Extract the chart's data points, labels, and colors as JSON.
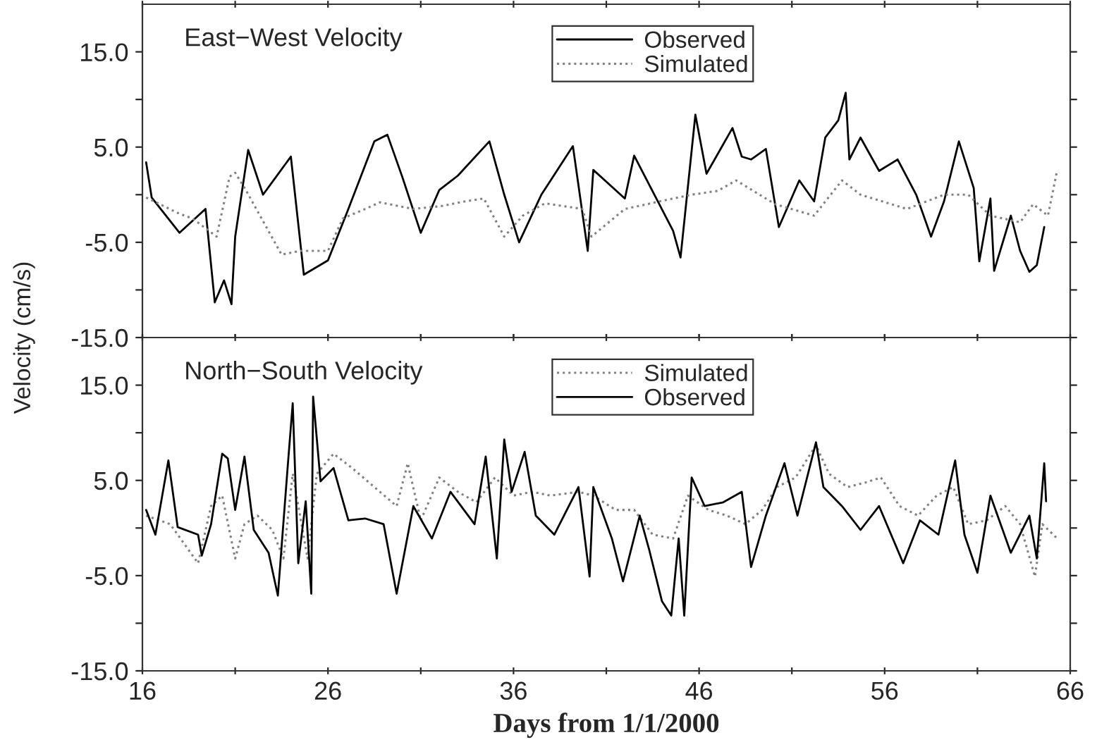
{
  "chart_data": [
    {
      "type": "line",
      "title": "East−West Velocity",
      "ylabel": "Velocity (cm/s)",
      "legend": "top",
      "tick_labels": "y",
      "xlim": [
        16,
        66
      ],
      "xticks": [
        {
          "value": 16,
          "label": null
        },
        {
          "value": 21,
          "label": null
        },
        {
          "value": 26,
          "label": null
        },
        {
          "value": 31,
          "label": null
        },
        {
          "value": 36,
          "label": null
        },
        {
          "value": 41,
          "label": null
        },
        {
          "value": 46,
          "label": null
        },
        {
          "value": 51,
          "label": null
        },
        {
          "value": 56,
          "label": null
        },
        {
          "value": 61,
          "label": null
        },
        {
          "value": 66,
          "label": null
        }
      ],
      "ylim": [
        -15,
        20
      ],
      "yticks": [
        {
          "value": -15,
          "label": "-15.0"
        },
        {
          "value": -10,
          "label": null
        },
        {
          "value": -5,
          "label": "-5.0"
        },
        {
          "value": 0,
          "label": null
        },
        {
          "value": 5,
          "label": "5.0"
        },
        {
          "value": 10,
          "label": null
        },
        {
          "value": 15,
          "label": "15.0"
        }
      ],
      "series": [
        {
          "name": "Observed",
          "color": "#000000",
          "line_style": "solid",
          "x": [
            16.2,
            16.5,
            18,
            19.4,
            19.9,
            20.4,
            20.8,
            21,
            21.7,
            22.5,
            24,
            24.7,
            26,
            27,
            28.5,
            29.2,
            30,
            31,
            32,
            33,
            34.7,
            35.5,
            36.3,
            37.5,
            39.2,
            40,
            40.3,
            42,
            42.5,
            44.6,
            45,
            45.8,
            46.4,
            47.8,
            48.3,
            48.8,
            49.6,
            50.3,
            51.4,
            52.2,
            52.8,
            53.5,
            53.9,
            54.1,
            54.7,
            55.7,
            56.7,
            57.7,
            58.5,
            59.2,
            60,
            60.8,
            61.1,
            61.7,
            61.9,
            62.8,
            63.3,
            63.8,
            64.2,
            64.6
          ],
          "values": [
            3.4,
            -0.3,
            -4,
            -1.5,
            -11.3,
            -9,
            -11.5,
            -4.4,
            4.7,
            0,
            4,
            -8.4,
            -6.9,
            -2,
            5.6,
            6.3,
            1.9,
            -4,
            0.5,
            2,
            5.6,
            0,
            -5,
            0,
            5.1,
            -5.9,
            2.6,
            -0.4,
            4.1,
            -3.8,
            -6.6,
            8.4,
            2.2,
            7,
            4,
            3.7,
            4.8,
            -3.4,
            1.5,
            -0.7,
            6,
            7.8,
            10.7,
            3.7,
            6,
            2.5,
            3.7,
            0,
            -4.4,
            -0.7,
            5.6,
            0.7,
            -7,
            -0.4,
            -8,
            -2.2,
            -5.9,
            -8.1,
            -7.4,
            -3.4
          ]
        },
        {
          "name": "Simulated",
          "color": "#808080",
          "line_style": "dotted",
          "x": [
            16.2,
            18,
            18.7,
            20,
            20.7,
            21,
            21.6,
            23.5,
            24.5,
            26,
            26.8,
            28,
            28.8,
            30.6,
            32.1,
            33.4,
            34.4,
            35.5,
            36.5,
            37.7,
            39.7,
            40.2,
            42,
            44.6,
            45.6,
            47,
            48,
            50.1,
            52.2,
            53.7,
            54.7,
            57.2,
            59.2,
            60.5,
            61.7,
            63.3,
            64,
            64.8,
            65.3
          ],
          "values": [
            -0.3,
            -2,
            -2.5,
            -4.4,
            1.9,
            2.3,
            0.4,
            -6.3,
            -5.9,
            -5.9,
            -2.5,
            -1.5,
            -0.8,
            -1.5,
            -1.2,
            -0.7,
            -0.4,
            -4.4,
            -2.2,
            -0.9,
            -1.5,
            -4.4,
            -1.5,
            -0.4,
            0,
            0.4,
            1.5,
            -1,
            -2.2,
            1.5,
            0,
            -1.5,
            0,
            0,
            -2.2,
            -2.9,
            -1,
            -2.2,
            2.6
          ]
        }
      ]
    },
    {
      "type": "line",
      "title": "North−South Velocity",
      "xlabel": "Days from 1/1/2000",
      "legend": "top",
      "xlim": [
        16,
        66
      ],
      "xticks": [
        16,
        {
          "value": 21,
          "label": null
        },
        26,
        {
          "value": 31,
          "label": null
        },
        36,
        {
          "value": 41,
          "label": null
        },
        46,
        {
          "value": 51,
          "label": null
        },
        56,
        {
          "value": 61,
          "label": null
        },
        66
      ],
      "ylim": [
        -15,
        20
      ],
      "yticks": [
        {
          "value": -15,
          "label": "-15.0"
        },
        {
          "value": -10,
          "label": null
        },
        {
          "value": -5,
          "label": "-5.0"
        },
        {
          "value": 0,
          "label": null
        },
        {
          "value": 5,
          "label": "5.0"
        },
        {
          "value": 10,
          "label": null
        },
        {
          "value": 15,
          "label": "15.0"
        }
      ],
      "series": [
        {
          "name": "Simulated",
          "color": "#808080",
          "line_style": "dotted",
          "x": [
            16.2,
            17.5,
            19,
            19.7,
            20.3,
            21,
            21.5,
            22.2,
            23,
            23.6,
            24.1,
            24.9,
            25.4,
            26.3,
            27.3,
            28.5,
            29.7,
            30.3,
            31,
            32,
            33,
            34,
            35,
            36,
            37,
            38,
            39.5,
            40.3,
            41.5,
            42.5,
            43.5,
            44.6,
            45.4,
            46.5,
            47.5,
            48.5,
            49.4,
            50.2,
            51.2,
            52.3,
            53,
            54,
            55,
            55.8,
            56.8,
            57.8,
            58.8,
            59.7,
            60.5,
            61.5,
            62.5,
            63.3,
            64.1,
            64.5,
            65.3
          ],
          "values": [
            1.3,
            0.4,
            -3.7,
            2.3,
            3.4,
            -3.2,
            0.4,
            1.3,
            -0.2,
            -3.2,
            5.7,
            -3.2,
            5.7,
            7.8,
            6.3,
            4.3,
            2.3,
            6.8,
            0.8,
            5.3,
            3.8,
            2.7,
            5.3,
            3.4,
            3.8,
            3.4,
            3.8,
            3.4,
            1.9,
            1.9,
            -0.7,
            -1.1,
            3.4,
            1.9,
            1.3,
            0.4,
            1.9,
            4.3,
            5.3,
            8.7,
            5.7,
            4.3,
            4.8,
            5.3,
            2.3,
            1.3,
            3.4,
            4.3,
            0.4,
            0.8,
            2.3,
            0.4,
            -5.1,
            0.4,
            -1.1
          ]
        },
        {
          "name": "Observed",
          "color": "#000000",
          "line_style": "solid",
          "x": [
            16.2,
            16.7,
            17.4,
            17.9,
            19,
            19.2,
            19.7,
            20.3,
            20.6,
            21,
            21.5,
            22,
            22.8,
            23.3,
            23.8,
            24.1,
            24.4,
            24.8,
            25.1,
            25.2,
            25.6,
            26.3,
            27.1,
            28,
            29,
            29.7,
            30.6,
            31.6,
            32.6,
            33.9,
            34.5,
            35.1,
            35.5,
            35.9,
            36.6,
            37.2,
            38.2,
            39.5,
            40.1,
            40.3,
            41.3,
            41.9,
            42.8,
            43.3,
            44,
            44.5,
            44.9,
            45.2,
            45.6,
            46.3,
            47.3,
            48.3,
            48.8,
            49.6,
            50.6,
            51.3,
            52.3,
            52.7,
            53.7,
            54.7,
            55.7,
            57,
            57.9,
            58.9,
            59.8,
            60.3,
            61,
            61.7,
            62.8,
            63.8,
            64.2,
            64.6,
            64.7
          ],
          "values": [
            1.9,
            -0.7,
            7.1,
            0.1,
            -0.7,
            -2.9,
            0.4,
            7.8,
            7.3,
            1.9,
            7.5,
            -0.2,
            -2.6,
            -7.1,
            5.7,
            13.1,
            -3.7,
            2.8,
            -6.9,
            13.8,
            4.9,
            6.3,
            0.8,
            1,
            0.4,
            -6.9,
            2.3,
            -1.1,
            3.8,
            0.4,
            7.5,
            -3.2,
            9.3,
            3.8,
            8,
            1.3,
            -0.7,
            4.3,
            -5.1,
            4.3,
            -1.1,
            -5.6,
            1.3,
            -2.2,
            -7.7,
            -9.2,
            -1.1,
            -9.2,
            5.3,
            2.3,
            2.7,
            3.8,
            -4.1,
            1.3,
            6.8,
            1.3,
            9,
            4.3,
            2.3,
            -0.2,
            2.3,
            -3.7,
            0.8,
            -0.7,
            7.1,
            -0.7,
            -4.7,
            3.4,
            -2.6,
            1.3,
            -3.2,
            6.8,
            2.8
          ]
        }
      ]
    }
  ]
}
